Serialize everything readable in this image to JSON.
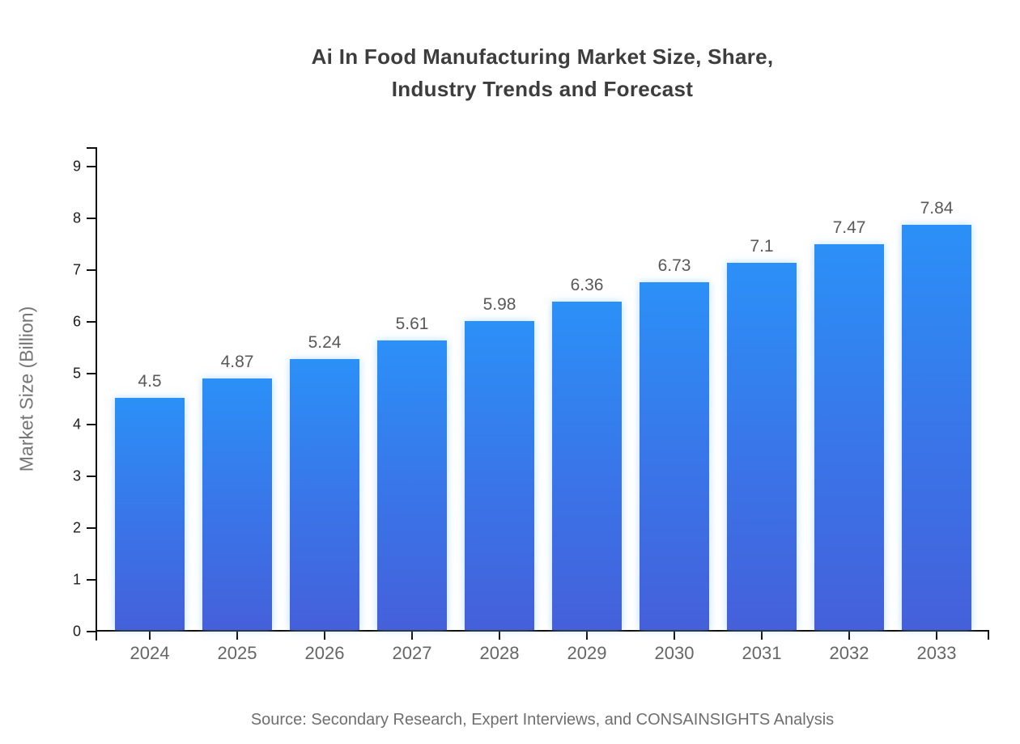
{
  "title": {
    "line1": "Ai In Food Manufacturing Market Size, Share,",
    "line2": "Industry Trends and Forecast"
  },
  "source": "Source: Secondary Research, Expert Interviews, and CONSAINSIGHTS Analysis",
  "colors": {
    "bar_gradient_top": "#2b90f7",
    "bar_gradient_bottom": "#4560da",
    "axis_line": "#111111",
    "title_text": "#3d3d3d",
    "value_label_text": "#595959",
    "x_tick_text": "#666666",
    "y_tick_text": "#1c1c1c",
    "y_axis_title_text": "#757575",
    "source_text": "#6f6f6f",
    "background": "#ffffff"
  },
  "chart_data": {
    "type": "bar",
    "title": "Ai In Food Manufacturing Market Size, Share, Industry Trends and Forecast",
    "categories": [
      "2024",
      "2025",
      "2026",
      "2027",
      "2028",
      "2029",
      "2030",
      "2031",
      "2032",
      "2033"
    ],
    "values": [
      4.5,
      4.87,
      5.24,
      5.61,
      5.98,
      6.36,
      6.73,
      7.1,
      7.47,
      7.84
    ],
    "value_labels": [
      "4.5",
      "4.87",
      "5.24",
      "5.61",
      "5.98",
      "6.36",
      "6.73",
      "7.1",
      "7.47",
      "7.84"
    ],
    "xlabel": "",
    "ylabel": "Market Size (Billion)",
    "ylim": [
      0,
      9
    ],
    "yticks": [
      0,
      1,
      2,
      3,
      4,
      5,
      6,
      7,
      8,
      9
    ],
    "ytick_labels": [
      "0",
      "1",
      "2",
      "3",
      "4",
      "5",
      "6",
      "7",
      "8",
      "9"
    ],
    "grid": false,
    "legend": null,
    "bar_orientation": "vertical"
  }
}
